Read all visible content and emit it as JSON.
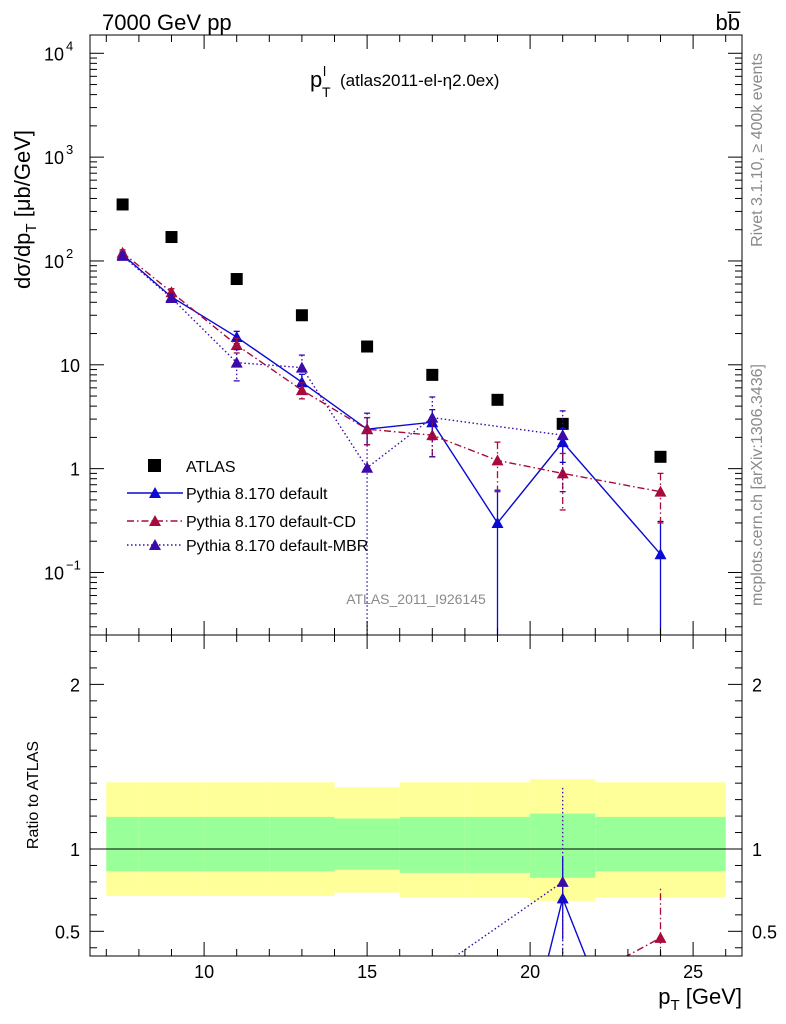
{
  "header": {
    "energy_label": "7000 GeV pp",
    "process_label": "bb̅",
    "rivet_label": "Rivet 3.1.10, ≥ 400k events",
    "mcplots_label": "mcplots.cern.ch [arXiv:1306.3436]",
    "plot_title": "(atlas2011-el-η2.0ex)",
    "plot_title_var": "p",
    "plot_title_sup": "l",
    "plot_title_sub": "T",
    "analysis_label": "ATLAS_2011_I926145"
  },
  "colors": {
    "data": "#000000",
    "default": "#0a0ad2",
    "cd": "#a80a3c",
    "mbr": "#3c0aa8",
    "band_inner": "#99ff99",
    "band_outer": "#ffff99"
  },
  "chart_data": [
    {
      "type": "scatter",
      "panel": "main",
      "ylabel": "dσ/dp",
      "ylabel_sub": "T",
      "ylabel_unit": "[μb/GeV]",
      "yscale": "log",
      "xlim": [
        6.5,
        26.5
      ],
      "ylim": [
        0.025,
        15000
      ],
      "y_ticks": [
        {
          "value": 0.1,
          "base": "10",
          "exp": "−1"
        },
        {
          "value": 1,
          "base": "1",
          "exp": ""
        },
        {
          "value": 10,
          "base": "10",
          "exp": ""
        },
        {
          "value": 100,
          "base": "10",
          "exp": "2"
        },
        {
          "value": 1000,
          "base": "10",
          "exp": "3"
        },
        {
          "value": 10000,
          "base": "10",
          "exp": "4"
        }
      ],
      "legend_position": "bottom-left",
      "series": [
        {
          "name": "ATLAS",
          "style": "square",
          "x": [
            7.5,
            9,
            11,
            13,
            15,
            17,
            19,
            21,
            24
          ],
          "y": [
            350,
            170,
            67,
            30,
            15,
            8,
            4.6,
            2.7,
            1.3
          ]
        },
        {
          "name": "Pythia 8.170 default",
          "style": "solid",
          "x": [
            7.5,
            9,
            11,
            13,
            15,
            17,
            19,
            21,
            24
          ],
          "y": [
            115,
            45,
            18.5,
            6.8,
            2.4,
            2.8,
            0.3,
            1.8,
            0.15
          ],
          "err": [
            8,
            4,
            2.5,
            1.3,
            0.7,
            0.9,
            0.32,
            0.65,
            0.16
          ]
        },
        {
          "name": "Pythia 8.170 default-CD",
          "style": "dashdot",
          "x": [
            7.5,
            9,
            11,
            13,
            15,
            17,
            19,
            21,
            24
          ],
          "y": [
            120,
            50,
            15.5,
            5.7,
            2.4,
            2.1,
            1.2,
            0.9,
            0.6
          ],
          "err": [
            8,
            4,
            2.5,
            1,
            0.7,
            0.8,
            0.6,
            0.5,
            0.3
          ]
        },
        {
          "name": "Pythia 8.170 default-MBR",
          "style": "dotted",
          "x": [
            7.5,
            9,
            11,
            13,
            15,
            17,
            19,
            21,
            24
          ],
          "y": [
            112,
            44,
            10.5,
            9.4,
            1.02,
            3.1,
            null,
            2.1,
            null
          ],
          "err": [
            8,
            4,
            3.5,
            3,
            2.4,
            1.8,
            null,
            1.5,
            null
          ]
        }
      ]
    },
    {
      "type": "line",
      "panel": "ratio",
      "xlabel": "p",
      "xlabel_sub": "T",
      "xlabel_unit": "[GeV]",
      "ylabel": "Ratio to ATLAS",
      "xlim": [
        6.5,
        26.5
      ],
      "ylim": [
        0.35,
        2.3
      ],
      "x_ticks": [
        10,
        15,
        20,
        25
      ],
      "y_ticks": [
        0.5,
        1,
        2
      ],
      "bands": {
        "edges": [
          7,
          8,
          10,
          12,
          14,
          16,
          18,
          20,
          22,
          26
        ],
        "inner": [
          [
            0.865,
            1.195
          ],
          [
            0.865,
            1.195
          ],
          [
            0.865,
            1.195
          ],
          [
            0.865,
            1.195
          ],
          [
            0.875,
            1.185
          ],
          [
            0.855,
            1.195
          ],
          [
            0.855,
            1.195
          ],
          [
            0.825,
            1.215
          ],
          [
            0.865,
            1.195
          ]
        ],
        "outer": [
          [
            0.715,
            1.405
          ],
          [
            0.715,
            1.405
          ],
          [
            0.715,
            1.405
          ],
          [
            0.715,
            1.405
          ],
          [
            0.735,
            1.375
          ],
          [
            0.705,
            1.405
          ],
          [
            0.705,
            1.405
          ],
          [
            0.685,
            1.425
          ],
          [
            0.705,
            1.405
          ]
        ]
      },
      "series": [
        {
          "name": "Pythia 8.170 default",
          "style": "solid",
          "points": [
            {
              "x": 20.5,
              "y": 0.3
            },
            {
              "x": 21,
              "y": 0.7,
              "err": 0.25
            },
            {
              "x": 22,
              "y": 0.2
            }
          ]
        },
        {
          "name": "Pythia 8.170 default-CD",
          "style": "dashdot",
          "points": [
            {
              "x": 22.5,
              "y": 0.3
            },
            {
              "x": 24,
              "y": 0.46,
              "err": 0.3
            }
          ]
        },
        {
          "name": "Pythia 8.170 default-MBR",
          "style": "dotted",
          "points": [
            {
              "x": 17,
              "y": 0.25
            },
            {
              "x": 21,
              "y": 0.8,
              "err": 0.58
            }
          ]
        }
      ]
    }
  ]
}
